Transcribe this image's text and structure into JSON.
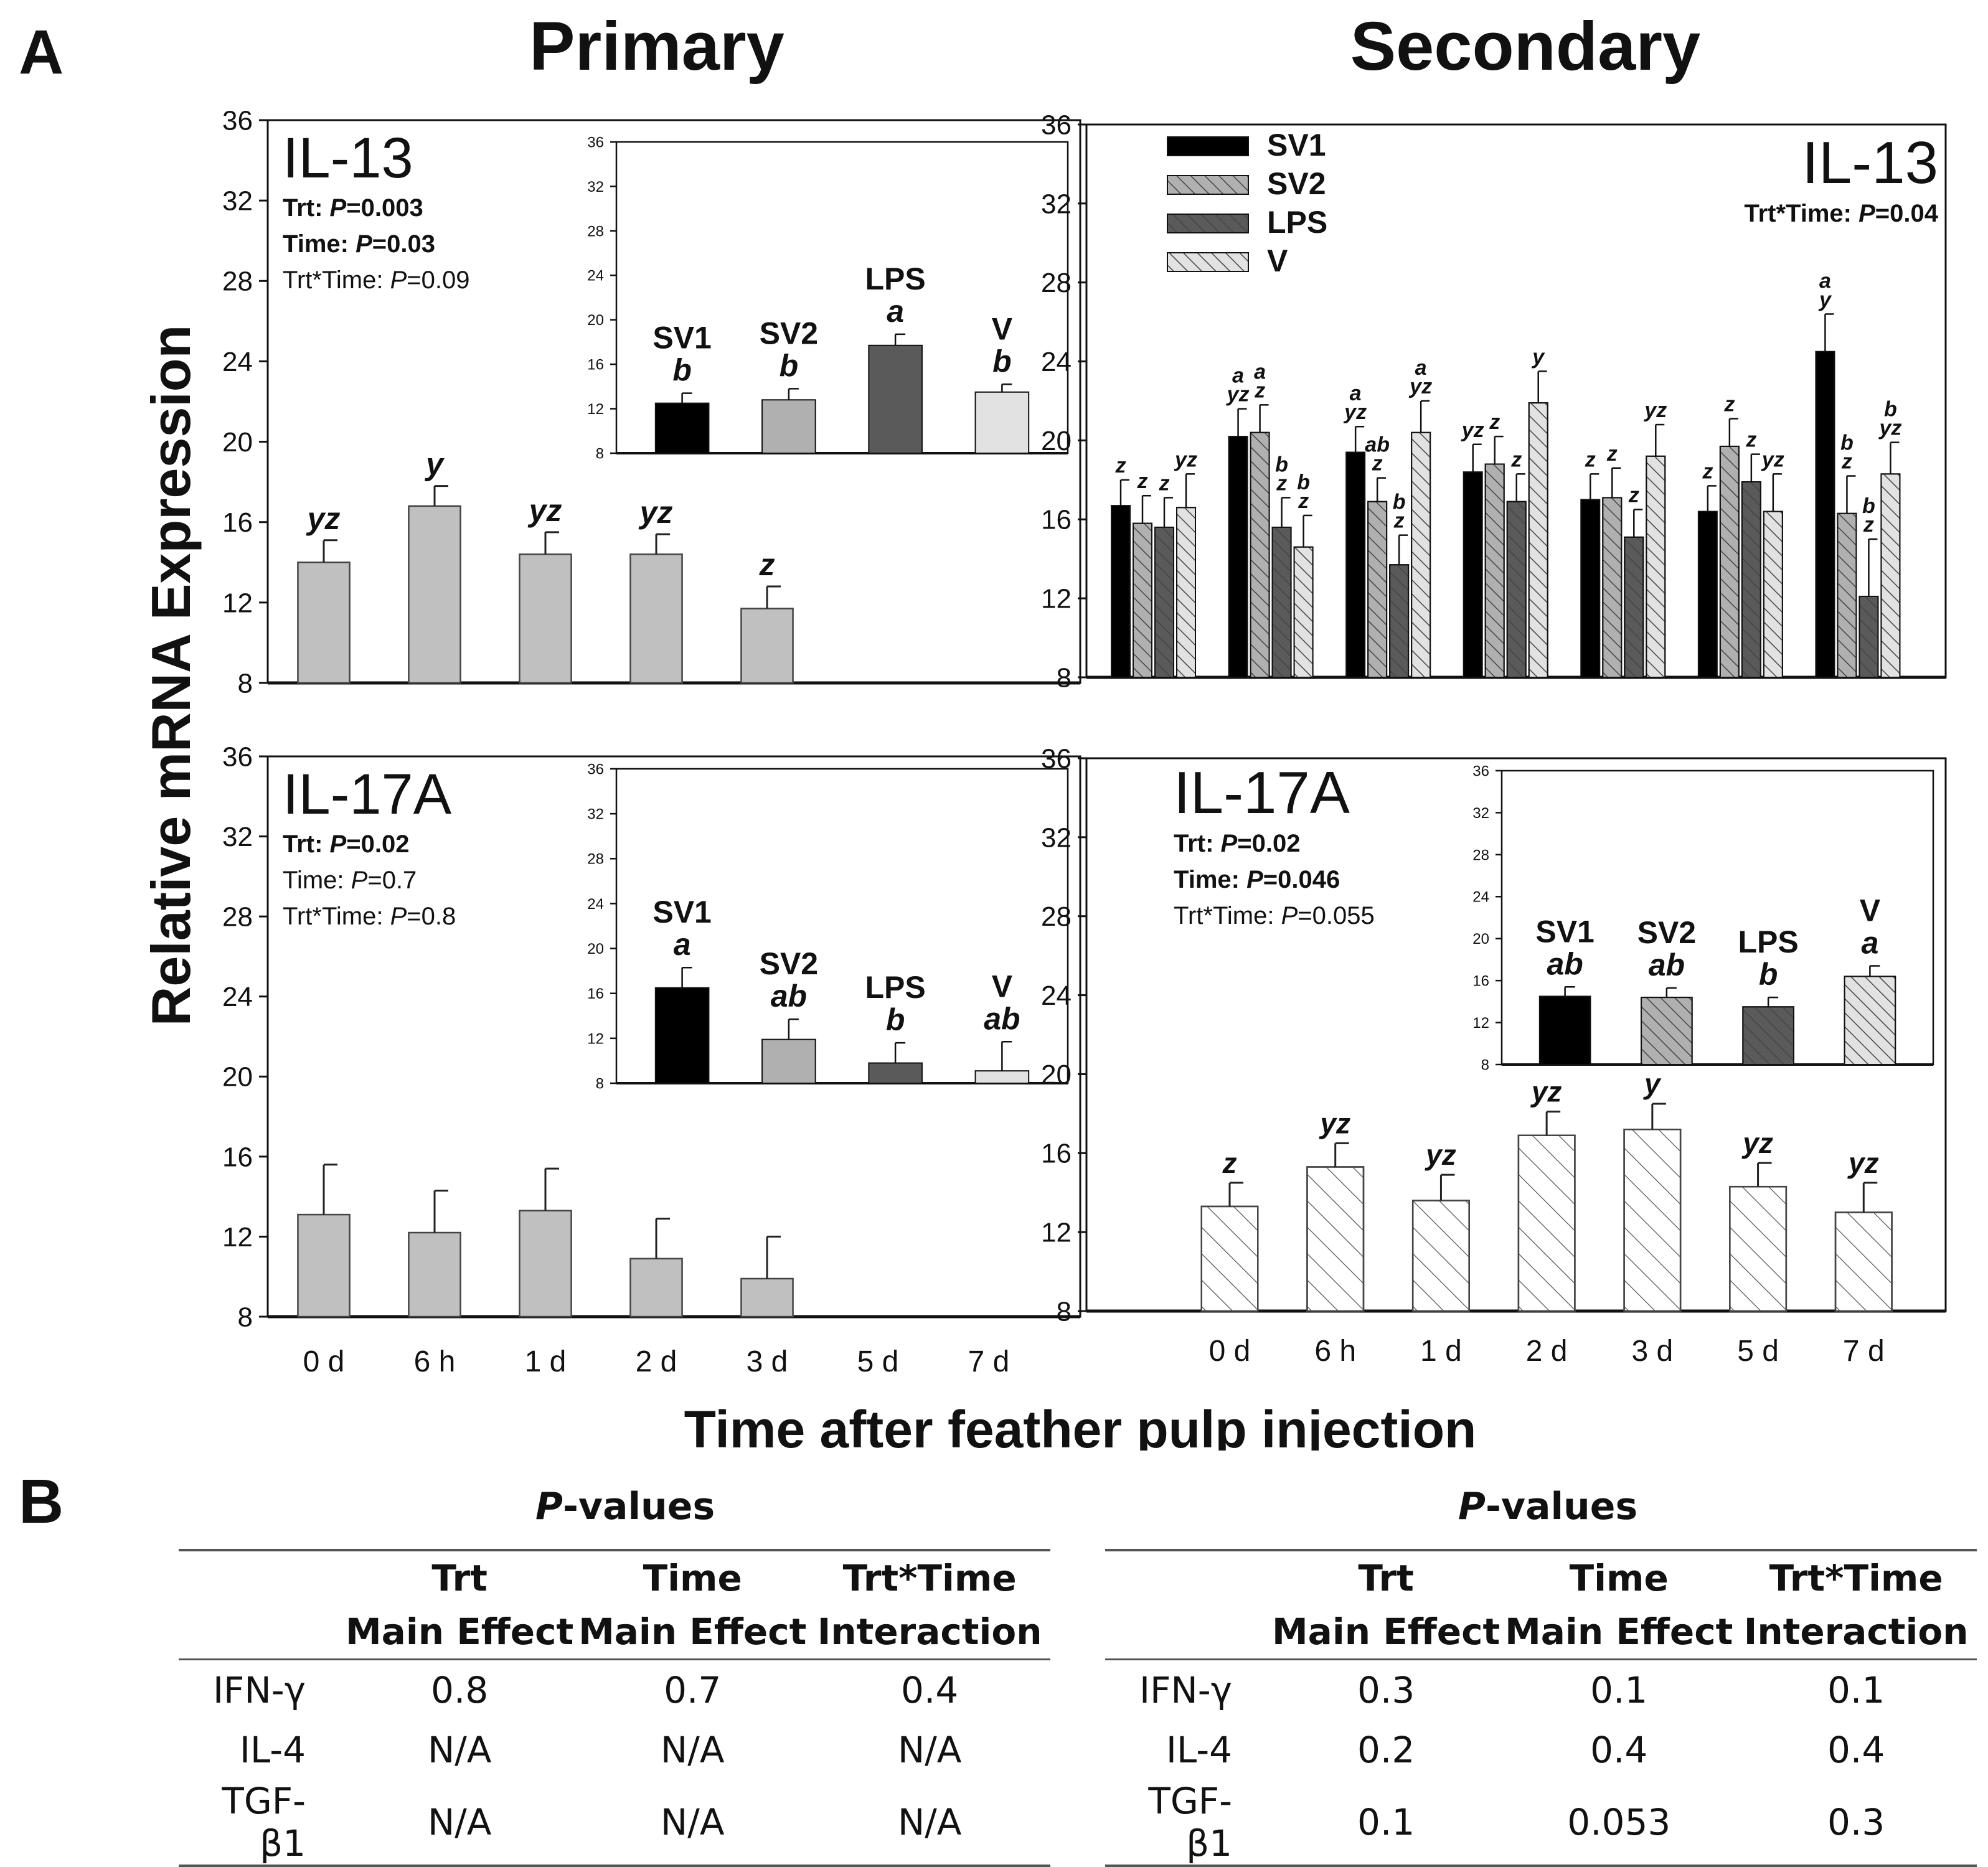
{
  "figure": {
    "panel_a_letter": "A",
    "panel_b_letter": "B",
    "col_titles": [
      "Primary",
      "Secondary"
    ],
    "ylabel": "Relative mRNA Expression",
    "xlabel": "Time after feather pulp injection"
  },
  "colors": {
    "SV1": "#000000",
    "SV2": "#b0b0b0",
    "LPS": "#5a5a5a",
    "V": "#e2e2e2",
    "primary_bar": "#c0c0c0"
  },
  "chart_data": [
    {
      "id": "primary_il13",
      "type": "bar",
      "title": "IL-13",
      "stats": [
        {
          "label": "Trt: ",
          "p": "P",
          "value": "=0.003",
          "bold": true
        },
        {
          "label": "Time: ",
          "p": "P",
          "value": "=0.03",
          "bold": true
        },
        {
          "label": "Trt*Time: ",
          "p": "P",
          "value": "=0.09",
          "bold": false
        }
      ],
      "categories": [
        "0 d",
        "6 h",
        "1 d",
        "2 d",
        "3 d",
        "5 d",
        "7 d"
      ],
      "values": [
        14.0,
        16.8,
        14.4,
        14.4,
        11.7,
        null,
        null
      ],
      "errors": [
        1.1,
        1.0,
        1.1,
        1.0,
        1.1,
        null,
        null
      ],
      "letters": [
        "yz",
        "y",
        "yz",
        "yz",
        "z",
        "",
        ""
      ],
      "ylim": [
        8,
        36
      ],
      "yticks": [
        8,
        12,
        16,
        20,
        24,
        28,
        32,
        36
      ],
      "inset": {
        "categories": [
          "SV1",
          "SV2",
          "LPS",
          "V"
        ],
        "values": [
          12.5,
          12.8,
          17.7,
          13.5
        ],
        "errors": [
          0.9,
          1.0,
          1.0,
          0.7
        ],
        "letters": [
          "b",
          "b",
          "a",
          "b"
        ],
        "ylim": [
          8,
          36
        ],
        "yticks": [
          8,
          12,
          16,
          20,
          24,
          28,
          32,
          36
        ]
      }
    },
    {
      "id": "secondary_il13",
      "type": "bar",
      "title": "IL-13",
      "stats": [
        {
          "label": "Trt*Time: ",
          "p": "P",
          "value": "=0.04",
          "bold": true
        }
      ],
      "categories": [
        "0 d",
        "6 h",
        "1 d",
        "2 d",
        "3 d",
        "5 d",
        "7 d"
      ],
      "legend": [
        "SV1",
        "SV2",
        "LPS",
        "V"
      ],
      "series": [
        {
          "name": "SV1",
          "values": [
            16.7,
            20.2,
            19.4,
            18.4,
            17.0,
            16.4,
            24.5
          ],
          "errors": [
            1.3,
            1.4,
            1.3,
            1.4,
            1.3,
            1.3,
            1.9
          ],
          "letters": [
            [
              "z"
            ],
            [
              "a",
              "yz"
            ],
            [
              "a",
              "yz"
            ],
            [
              "yz"
            ],
            [
              "z"
            ],
            [
              "z"
            ],
            [
              "a",
              "y"
            ]
          ]
        },
        {
          "name": "SV2",
          "values": [
            15.8,
            20.4,
            16.9,
            18.8,
            17.1,
            19.7,
            16.3
          ],
          "errors": [
            1.4,
            1.4,
            1.2,
            1.4,
            1.5,
            1.4,
            1.9
          ],
          "letters": [
            [
              "z"
            ],
            [
              "a",
              "z"
            ],
            [
              "ab",
              "z"
            ],
            [
              "z"
            ],
            [
              "z"
            ],
            [
              "z"
            ],
            [
              "b",
              "z"
            ]
          ]
        },
        {
          "name": "LPS",
          "values": [
            15.6,
            15.6,
            13.7,
            16.9,
            15.1,
            17.9,
            12.1
          ],
          "errors": [
            1.5,
            1.5,
            1.5,
            1.4,
            1.4,
            1.4,
            2.9
          ],
          "letters": [
            [
              "z"
            ],
            [
              "b",
              "z"
            ],
            [
              "b",
              "z"
            ],
            [
              "z"
            ],
            [
              "z"
            ],
            [
              "z"
            ],
            [
              "b",
              "z"
            ]
          ]
        },
        {
          "name": "V",
          "values": [
            16.6,
            14.6,
            20.4,
            21.9,
            19.2,
            16.4,
            18.3
          ],
          "errors": [
            1.7,
            1.6,
            1.6,
            1.6,
            1.6,
            1.9,
            1.6
          ],
          "letters": [
            [
              "yz"
            ],
            [
              "b",
              "z"
            ],
            [
              "a",
              "yz"
            ],
            [
              "y"
            ],
            [
              "yz"
            ],
            [
              "yz"
            ],
            [
              "b",
              "yz"
            ]
          ]
        }
      ],
      "ylim": [
        8,
        36
      ],
      "yticks": [
        8,
        12,
        16,
        20,
        24,
        28,
        32,
        36
      ]
    },
    {
      "id": "primary_il17a",
      "type": "bar",
      "title": "IL-17A",
      "stats": [
        {
          "label": "Trt: ",
          "p": "P",
          "value": "=0.02",
          "bold": true
        },
        {
          "label": "Time: ",
          "p": "P",
          "value": "=0.7",
          "bold": false
        },
        {
          "label": "Trt*Time: ",
          "p": "P",
          "value": "=0.8",
          "bold": false
        }
      ],
      "categories": [
        "0 d",
        "6 h",
        "1 d",
        "2 d",
        "3 d",
        "5 d",
        "7 d"
      ],
      "values": [
        13.1,
        12.2,
        13.3,
        10.9,
        9.9,
        null,
        null
      ],
      "errors": [
        2.5,
        2.1,
        2.1,
        2.0,
        2.1,
        null,
        null
      ],
      "letters": [
        "",
        "",
        "",
        "",
        "",
        "",
        ""
      ],
      "ylim": [
        8,
        36
      ],
      "yticks": [
        8,
        12,
        16,
        20,
        24,
        28,
        32,
        36
      ],
      "inset": {
        "categories": [
          "SV1",
          "SV2",
          "LPS",
          "V"
        ],
        "values": [
          16.5,
          11.9,
          9.8,
          9.1
        ],
        "errors": [
          1.8,
          1.8,
          1.8,
          2.6
        ],
        "letters": [
          "a",
          "ab",
          "b",
          "ab"
        ],
        "ylim": [
          8,
          36
        ],
        "yticks": [
          8,
          12,
          16,
          20,
          24,
          28,
          32,
          36
        ]
      }
    },
    {
      "id": "secondary_il17a",
      "type": "bar",
      "title": "IL-17A",
      "stats": [
        {
          "label": "Trt: ",
          "p": "P",
          "value": "=0.02",
          "bold": true
        },
        {
          "label": "Time: ",
          "p": "P",
          "value": "=0.046",
          "bold": true
        },
        {
          "label": "Trt*Time: ",
          "p": "P",
          "value": "=0.055",
          "bold": false
        }
      ],
      "categories": [
        "0 d",
        "6 h",
        "1 d",
        "2 d",
        "3 d",
        "5 d",
        "7 d"
      ],
      "values": [
        13.3,
        15.3,
        13.6,
        16.9,
        17.2,
        14.3,
        13.0
      ],
      "errors": [
        1.2,
        1.2,
        1.3,
        1.2,
        1.3,
        1.2,
        1.5
      ],
      "letters": [
        "z",
        "yz",
        "yz",
        "yz",
        "y",
        "yz",
        "yz"
      ],
      "ylim": [
        8,
        36
      ],
      "yticks": [
        8,
        12,
        16,
        20,
        24,
        28,
        32,
        36
      ],
      "inset": {
        "categories": [
          "SV1",
          "SV2",
          "LPS",
          "V"
        ],
        "values": [
          14.5,
          14.4,
          13.5,
          16.4
        ],
        "errors": [
          0.9,
          0.9,
          0.9,
          1.0
        ],
        "letters": [
          "ab",
          "ab",
          "b",
          "a"
        ],
        "ylim": [
          8,
          36
        ],
        "yticks": [
          8,
          12,
          16,
          20,
          24,
          28,
          32,
          36
        ]
      }
    }
  ],
  "tables": {
    "title_prefix": "P",
    "title_suffix": "-values",
    "headers_row1": [
      "",
      "Trt",
      "Time",
      "Trt*Time"
    ],
    "headers_row2": [
      "",
      "Main Effect",
      "Main Effect",
      "Interaction"
    ],
    "primary": [
      [
        "IFN-γ",
        "0.8",
        "0.7",
        "0.4"
      ],
      [
        "IL-4",
        "N/A",
        "N/A",
        "N/A"
      ],
      [
        "TGF-β1",
        "N/A",
        "N/A",
        "N/A"
      ]
    ],
    "secondary": [
      [
        "IFN-γ",
        "0.3",
        "0.1",
        "0.1"
      ],
      [
        "IL-4",
        "0.2",
        "0.4",
        "0.4"
      ],
      [
        "TGF-β1",
        "0.1",
        "0.053",
        "0.3"
      ]
    ]
  }
}
